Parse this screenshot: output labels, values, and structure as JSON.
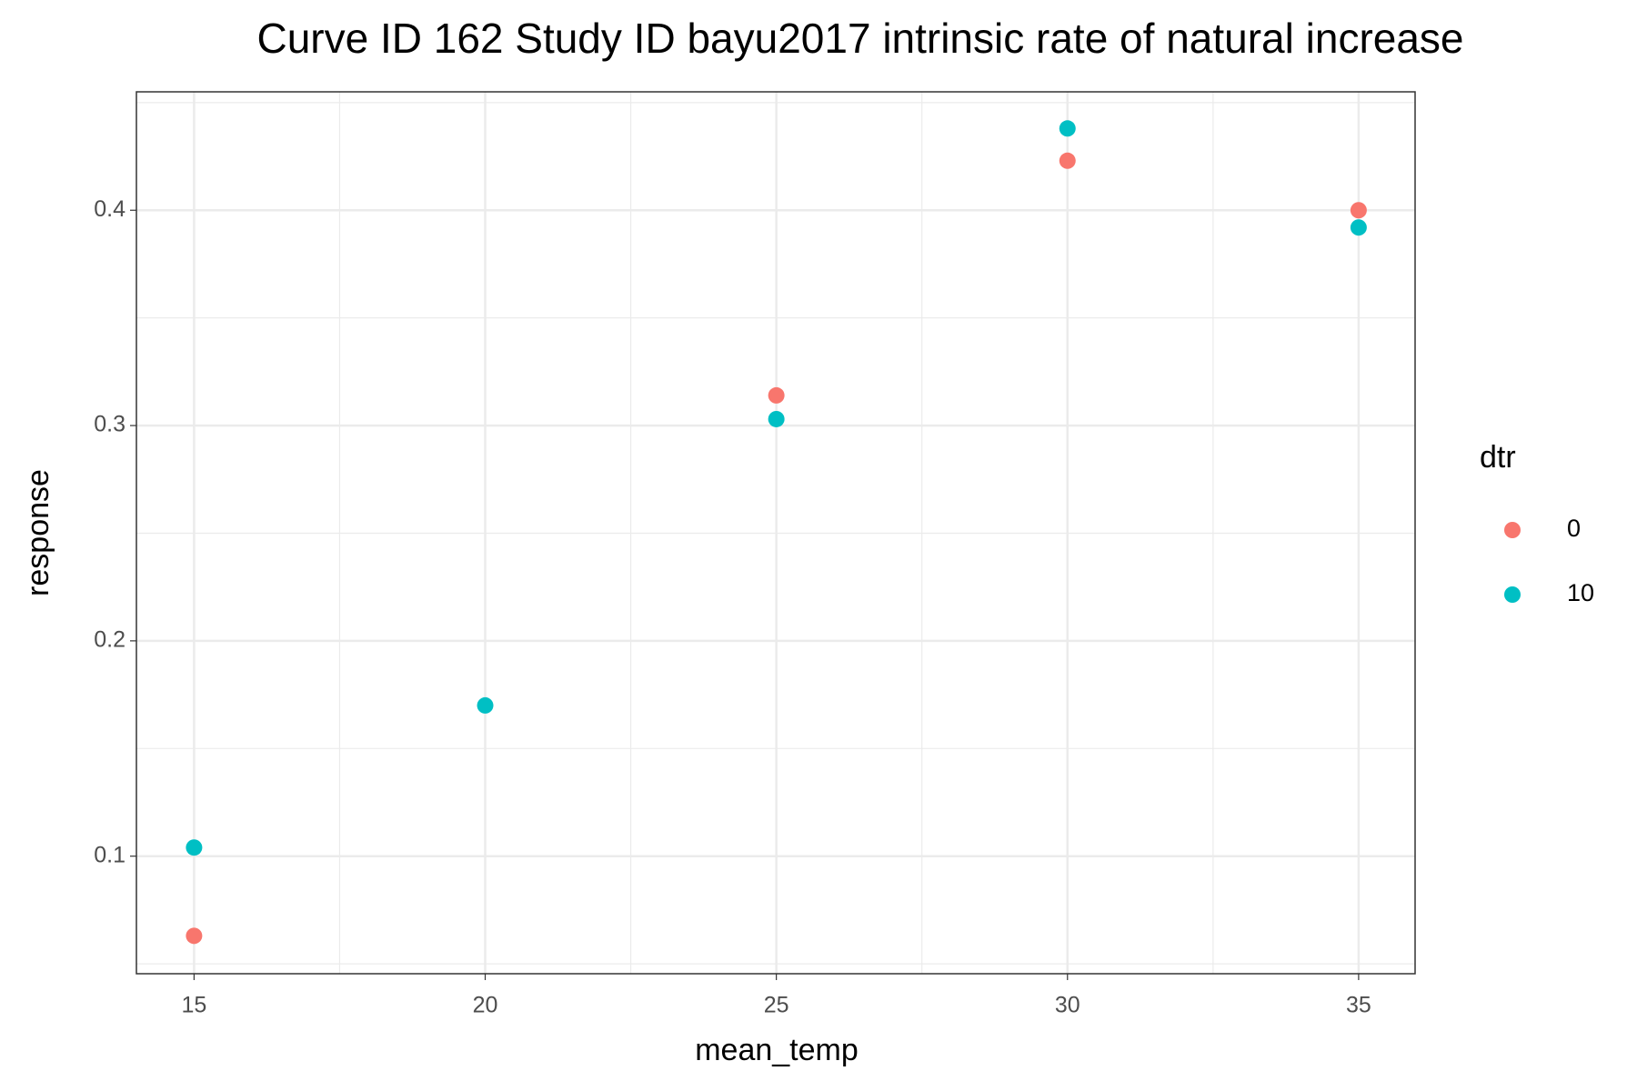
{
  "chart_data": {
    "type": "scatter",
    "title": "Curve ID 162 Study ID bayu2017 intrinsic rate of natural increase",
    "x_label": "mean_temp",
    "y_label": "response",
    "legend_title": "dtr",
    "legend_position": "right",
    "series": [
      {
        "name": "0",
        "color": "#F8766D",
        "x": [
          15,
          25,
          30,
          35
        ],
        "values": [
          0.063,
          0.314,
          0.423,
          0.4
        ]
      },
      {
        "name": "10",
        "color": "#00BFC4",
        "x": [
          15,
          20,
          25,
          30,
          35
        ],
        "values": [
          0.104,
          0.17,
          0.303,
          0.438,
          0.392
        ]
      }
    ],
    "xlim": [
      14.01,
      35.97
    ],
    "xticks": [
      15,
      20,
      25,
      30,
      35
    ],
    "xminorticks": [
      17.5,
      22.5,
      27.5,
      32.5
    ],
    "ylim": [
      0.0454,
      0.455
    ],
    "yticks": [
      {
        "value": 0.1,
        "label": "0.1"
      },
      {
        "value": 0.2,
        "label": "0.2"
      },
      {
        "value": 0.3,
        "label": "0.3"
      },
      {
        "value": 0.4,
        "label": "0.4"
      }
    ],
    "yminorticks": [
      0.05,
      0.15,
      0.25,
      0.35,
      0.45
    ],
    "grid": true
  }
}
